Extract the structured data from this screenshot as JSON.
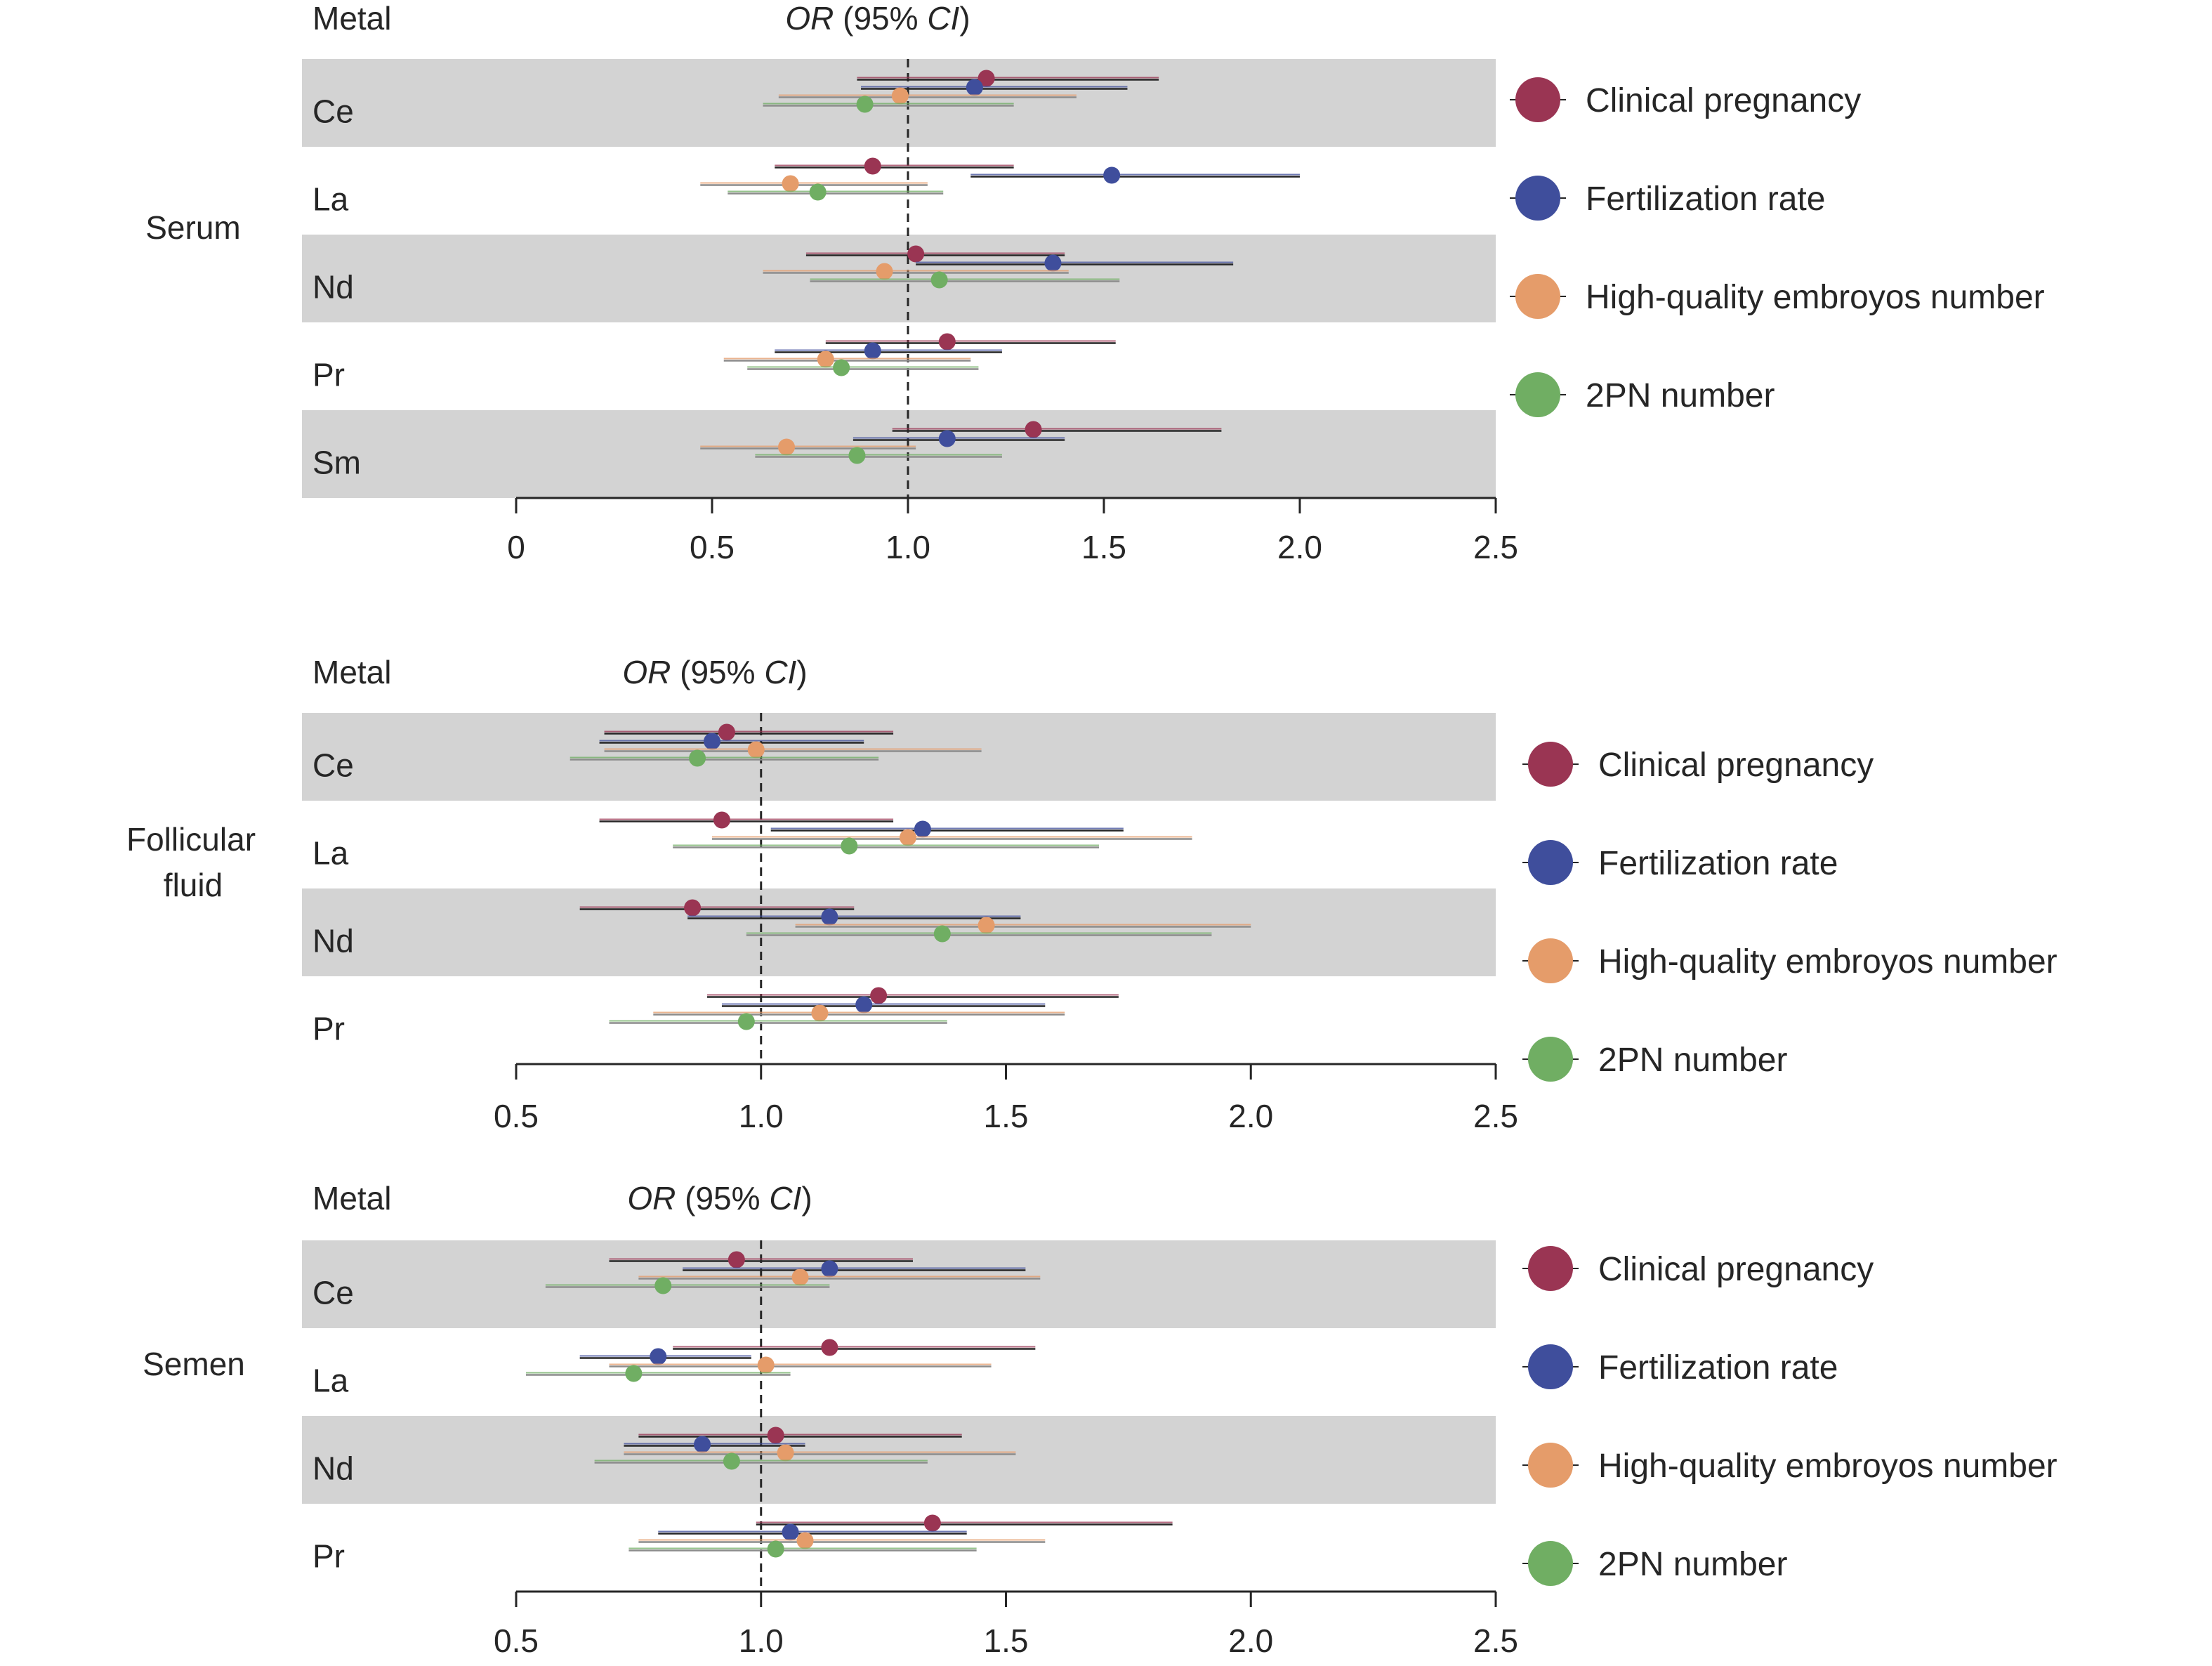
{
  "header": {
    "metal": "Metal",
    "ci_italic_a": "OR",
    "ci_mid": " (95% ",
    "ci_italic_b": "CI",
    "ci_end": ")"
  },
  "colors": {
    "clinical_pregnancy": "#9a3553",
    "fertilization_rate": "#3f4e9c",
    "high_quality_embryos": "#e59c6a",
    "pn2_number": "#70ae63",
    "band": "#d3d3d3"
  },
  "legend": {
    "items": [
      {
        "label": "Clinical pregnancy",
        "color": "#9a3553"
      },
      {
        "label": "Fertilization rate",
        "color": "#3f4e9c"
      },
      {
        "label": "High-quality embroyos number",
        "color": "#e59c6a"
      },
      {
        "label": "2PN number",
        "color": "#70ae63"
      }
    ]
  },
  "chart_data": [
    {
      "type": "forest",
      "group_label": "Serum",
      "xlim": [
        0,
        2.5
      ],
      "reference_line": 1.0,
      "ticks": [
        "0",
        "0.5",
        "1.0",
        "1.5",
        "2.0",
        "2.5"
      ],
      "tick_values": [
        0,
        0.5,
        1.0,
        1.5,
        2.0,
        2.5
      ],
      "rows": [
        {
          "metal": "Ce",
          "shaded": true,
          "estimates": [
            {
              "series": "Clinical pregnancy",
              "or": 1.2,
              "lo": 0.87,
              "hi": 1.64
            },
            {
              "series": "Fertilization rate",
              "or": 1.17,
              "lo": 0.88,
              "hi": 1.56
            },
            {
              "series": "High-quality embroyos number",
              "or": 0.98,
              "lo": 0.67,
              "hi": 1.43
            },
            {
              "series": "2PN number",
              "or": 0.89,
              "lo": 0.63,
              "hi": 1.27
            }
          ]
        },
        {
          "metal": "La",
          "shaded": false,
          "estimates": [
            {
              "series": "Clinical pregnancy",
              "or": 0.91,
              "lo": 0.66,
              "hi": 1.27
            },
            {
              "series": "Fertilization rate",
              "or": 1.52,
              "lo": 1.16,
              "hi": 2.0
            },
            {
              "series": "High-quality embroyos number",
              "or": 0.7,
              "lo": 0.47,
              "hi": 1.05
            },
            {
              "series": "2PN number",
              "or": 0.77,
              "lo": 0.54,
              "hi": 1.09
            }
          ]
        },
        {
          "metal": "Nd",
          "shaded": true,
          "estimates": [
            {
              "series": "Clinical pregnancy",
              "or": 1.02,
              "lo": 0.74,
              "hi": 1.4
            },
            {
              "series": "Fertilization rate",
              "or": 1.37,
              "lo": 1.02,
              "hi": 1.83
            },
            {
              "series": "High-quality embroyos number",
              "or": 0.94,
              "lo": 0.63,
              "hi": 1.41
            },
            {
              "series": "2PN number",
              "or": 1.08,
              "lo": 0.75,
              "hi": 1.54
            }
          ]
        },
        {
          "metal": "Pr",
          "shaded": false,
          "estimates": [
            {
              "series": "Clinical pregnancy",
              "or": 1.1,
              "lo": 0.79,
              "hi": 1.53
            },
            {
              "series": "Fertilization rate",
              "or": 0.91,
              "lo": 0.66,
              "hi": 1.24
            },
            {
              "series": "High-quality embroyos number",
              "or": 0.79,
              "lo": 0.53,
              "hi": 1.16
            },
            {
              "series": "2PN number",
              "or": 0.83,
              "lo": 0.59,
              "hi": 1.18
            }
          ]
        },
        {
          "metal": "Sm",
          "shaded": true,
          "estimates": [
            {
              "series": "Clinical pregnancy",
              "or": 1.32,
              "lo": 0.96,
              "hi": 1.8
            },
            {
              "series": "Fertilization rate",
              "or": 1.1,
              "lo": 0.86,
              "hi": 1.4
            },
            {
              "series": "High-quality embroyos number",
              "or": 0.69,
              "lo": 0.47,
              "hi": 1.02
            },
            {
              "series": "2PN number",
              "or": 0.87,
              "lo": 0.61,
              "hi": 1.24
            }
          ]
        }
      ]
    },
    {
      "type": "forest",
      "group_label": "Follicular fluid",
      "group_label_lines": [
        "Follicular",
        "fluid"
      ],
      "xlim": [
        0.5,
        2.5
      ],
      "reference_line": 1.0,
      "ticks": [
        "0.5",
        "1.0",
        "1.5",
        "2.0",
        "2.5"
      ],
      "tick_values": [
        0.5,
        1.0,
        1.5,
        2.0,
        2.5
      ],
      "rows": [
        {
          "metal": "Ce",
          "shaded": true,
          "estimates": [
            {
              "series": "Clinical pregnancy",
              "or": 0.93,
              "lo": 0.68,
              "hi": 1.27
            },
            {
              "series": "Fertilization rate",
              "or": 0.9,
              "lo": 0.67,
              "hi": 1.21
            },
            {
              "series": "High-quality embroyos number",
              "or": 0.99,
              "lo": 0.68,
              "hi": 1.45
            },
            {
              "series": "2PN number",
              "or": 0.87,
              "lo": 0.61,
              "hi": 1.24
            }
          ]
        },
        {
          "metal": "La",
          "shaded": false,
          "estimates": [
            {
              "series": "Clinical pregnancy",
              "or": 0.92,
              "lo": 0.67,
              "hi": 1.27
            },
            {
              "series": "Fertilization rate",
              "or": 1.33,
              "lo": 1.02,
              "hi": 1.74
            },
            {
              "series": "High-quality embroyos number",
              "or": 1.3,
              "lo": 0.9,
              "hi": 1.88
            },
            {
              "series": "2PN number",
              "or": 1.18,
              "lo": 0.82,
              "hi": 1.69
            }
          ]
        },
        {
          "metal": "Nd",
          "shaded": true,
          "estimates": [
            {
              "series": "Clinical pregnancy",
              "or": 0.86,
              "lo": 0.63,
              "hi": 1.19
            },
            {
              "series": "Fertilization rate",
              "or": 1.14,
              "lo": 0.85,
              "hi": 1.53
            },
            {
              "series": "High-quality embroyos number",
              "or": 1.46,
              "lo": 1.07,
              "hi": 2.0
            },
            {
              "series": "2PN number",
              "or": 1.37,
              "lo": 0.97,
              "hi": 1.92
            }
          ]
        },
        {
          "metal": "Pr",
          "shaded": false,
          "estimates": [
            {
              "series": "Clinical pregnancy",
              "or": 1.24,
              "lo": 0.89,
              "hi": 1.73
            },
            {
              "series": "Fertilization rate",
              "or": 1.21,
              "lo": 0.92,
              "hi": 1.58
            },
            {
              "series": "High-quality embroyos number",
              "or": 1.12,
              "lo": 0.78,
              "hi": 1.62
            },
            {
              "series": "2PN number",
              "or": 0.97,
              "lo": 0.69,
              "hi": 1.38
            }
          ]
        }
      ]
    },
    {
      "type": "forest",
      "group_label": "Semen",
      "xlim": [
        0.5,
        2.5
      ],
      "reference_line": 1.0,
      "ticks": [
        "0.5",
        "1.0",
        "1.5",
        "2.0",
        "2.5"
      ],
      "tick_values": [
        0.5,
        1.0,
        1.5,
        2.0,
        2.5
      ],
      "rows": [
        {
          "metal": "Ce",
          "shaded": true,
          "estimates": [
            {
              "series": "Clinical pregnancy",
              "or": 0.95,
              "lo": 0.69,
              "hi": 1.31
            },
            {
              "series": "Fertilization rate",
              "or": 1.14,
              "lo": 0.84,
              "hi": 1.54
            },
            {
              "series": "High-quality embroyos number",
              "or": 1.08,
              "lo": 0.75,
              "hi": 1.57
            },
            {
              "series": "2PN number",
              "or": 0.8,
              "lo": 0.56,
              "hi": 1.14
            }
          ]
        },
        {
          "metal": "La",
          "shaded": false,
          "estimates": [
            {
              "series": "Clinical pregnancy",
              "or": 1.14,
              "lo": 0.82,
              "hi": 1.56
            },
            {
              "series": "Fertilization rate",
              "or": 0.79,
              "lo": 0.63,
              "hi": 0.98
            },
            {
              "series": "High-quality embroyos number",
              "or": 1.01,
              "lo": 0.69,
              "hi": 1.47
            },
            {
              "series": "2PN number",
              "or": 0.74,
              "lo": 0.52,
              "hi": 1.06
            }
          ]
        },
        {
          "metal": "Nd",
          "shaded": true,
          "estimates": [
            {
              "series": "Clinical pregnancy",
              "or": 1.03,
              "lo": 0.75,
              "hi": 1.41
            },
            {
              "series": "Fertilization rate",
              "or": 0.88,
              "lo": 0.72,
              "hi": 1.09
            },
            {
              "series": "High-quality embroyos number",
              "or": 1.05,
              "lo": 0.72,
              "hi": 1.52
            },
            {
              "series": "2PN number",
              "or": 0.94,
              "lo": 0.66,
              "hi": 1.34
            }
          ]
        },
        {
          "metal": "Pr",
          "shaded": false,
          "estimates": [
            {
              "series": "Clinical pregnancy",
              "or": 1.35,
              "lo": 0.99,
              "hi": 1.84
            },
            {
              "series": "Fertilization rate",
              "or": 1.06,
              "lo": 0.79,
              "hi": 1.42
            },
            {
              "series": "High-quality embroyos number",
              "or": 1.09,
              "lo": 0.75,
              "hi": 1.58
            },
            {
              "series": "2PN number",
              "or": 1.03,
              "lo": 0.73,
              "hi": 1.44
            }
          ]
        }
      ]
    }
  ]
}
